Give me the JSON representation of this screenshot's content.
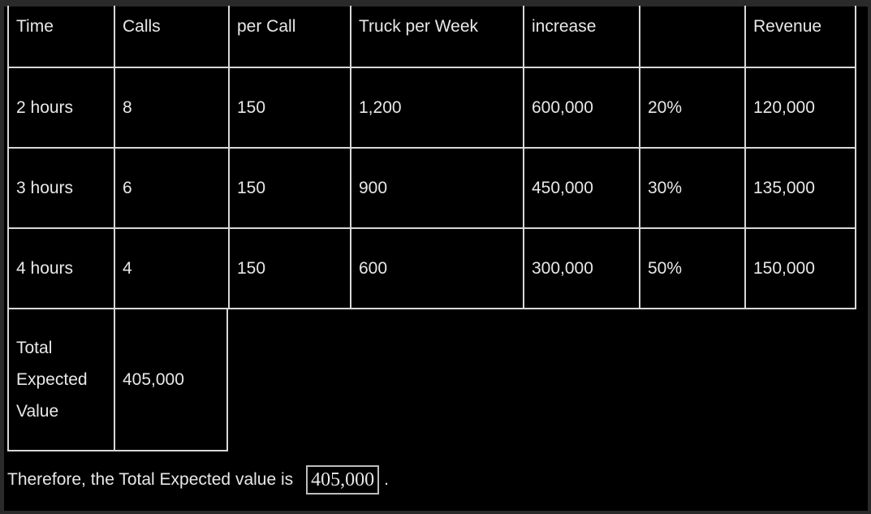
{
  "table": {
    "header": [
      "Time",
      "Calls",
      "per Call",
      "Truck per Week",
      "increase",
      "",
      "Revenue"
    ],
    "rows": [
      [
        "2 hours",
        "8",
        "150",
        "1,200",
        "600,000",
        "20%",
        "120,000"
      ],
      [
        "3 hours",
        "6",
        "150",
        "900",
        "450,000",
        "30%",
        "135,000"
      ],
      [
        "4 hours",
        "4",
        "150",
        "600",
        "300,000",
        "50%",
        "150,000"
      ]
    ],
    "total_label": "Total Expected Value",
    "total_value": "405,000"
  },
  "conclusion": {
    "text": "Therefore, the Total Expected value is",
    "answer": "405,000",
    "end": "."
  }
}
